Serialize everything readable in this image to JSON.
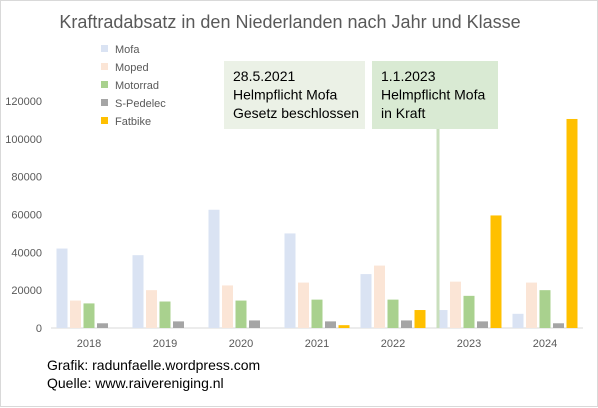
{
  "chart_data": {
    "type": "bar",
    "title": "Kraftradabsatz in den Niederlanden nach Jahr und Klasse",
    "categories": [
      "2018",
      "2019",
      "2020",
      "2021",
      "2022",
      "2023",
      "2024"
    ],
    "series": [
      {
        "name": "Mofa",
        "color": "#dae3f3",
        "values": [
          42000,
          38500,
          62500,
          50000,
          28500,
          9500,
          7500
        ]
      },
      {
        "name": "Moped",
        "color": "#fbe5d6",
        "values": [
          14500,
          20000,
          22500,
          24000,
          33000,
          24500,
          24000
        ]
      },
      {
        "name": "Motorrad",
        "color": "#a9d18e",
        "values": [
          13000,
          14000,
          14500,
          15000,
          15000,
          17000,
          20000
        ]
      },
      {
        "name": "S-Pedelec",
        "color": "#a5a5a5",
        "values": [
          2500,
          3500,
          4000,
          3500,
          4000,
          3500,
          2500
        ]
      },
      {
        "name": "Fatbike",
        "color": "#ffc000",
        "values": [
          0,
          0,
          0,
          1500,
          9500,
          59500,
          110500
        ]
      }
    ],
    "ylim": [
      0,
      120000
    ],
    "yticks": [
      0,
      20000,
      40000,
      60000,
      80000,
      100000,
      120000
    ],
    "grid": false,
    "legend_position": "top-left",
    "annotations": [
      {
        "lines": [
          "28.5.2021",
          "Helmpflicht Mofa",
          "Gesetz beschlossen"
        ],
        "color": "#ebf1e6"
      },
      {
        "lines": [
          "1.1.2023",
          "Helmpflicht Mofa",
          "in Kraft"
        ],
        "color": "#d9ead3",
        "marker_line_color": "#c9dfbd"
      }
    ],
    "credits": [
      "Grafik: radunfaelle.wordpress.com",
      "Quelle: www.raivereniging.nl"
    ]
  }
}
